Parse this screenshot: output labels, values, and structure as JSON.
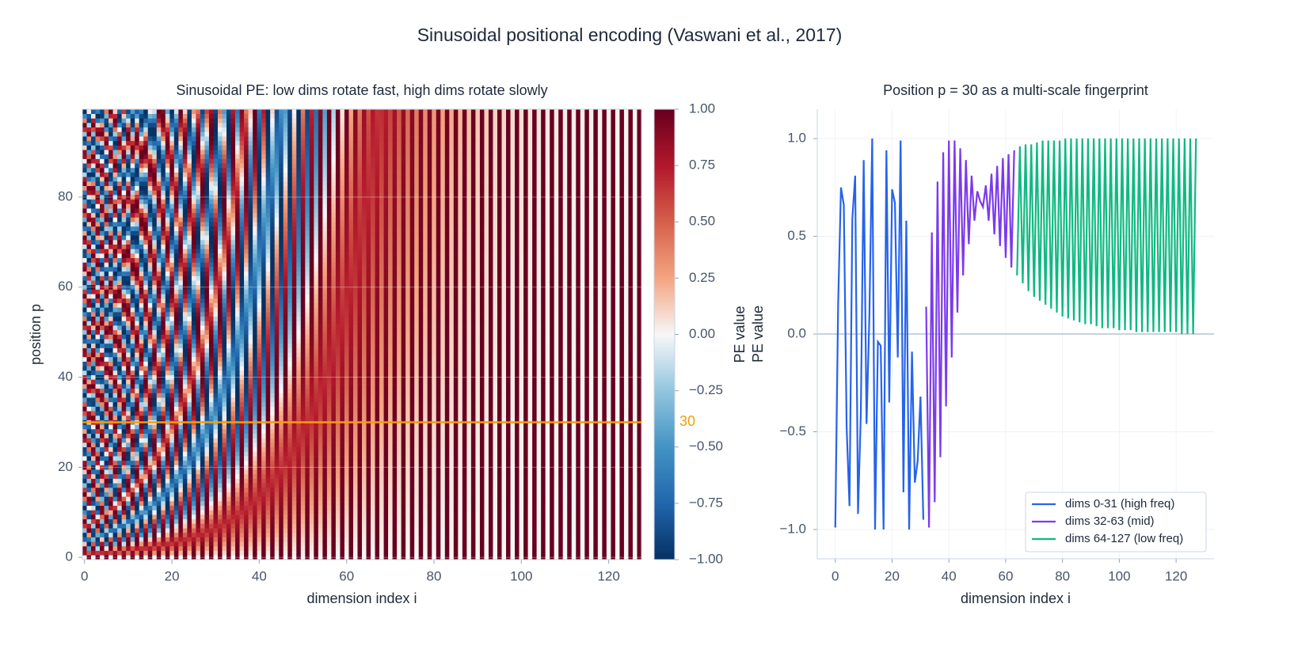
{
  "title": "Sinusoidal positional encoding (Vaswani et al., 2017)",
  "chart_data": [
    {
      "type": "heatmap",
      "title": "Sinusoidal PE: low dims rotate fast, high dims rotate slowly",
      "xlabel": "dimension index i",
      "ylabel": "position p",
      "xlim": [
        -0.5,
        127.5
      ],
      "ylim": [
        -0.5,
        99.5
      ],
      "xticks": [
        0,
        20,
        40,
        60,
        80,
        100,
        120
      ],
      "yticks": [
        0,
        20,
        40,
        60,
        80
      ],
      "colormap": [
        "#053061",
        "#2166ac",
        "#4393c3",
        "#92c5de",
        "#f7f7f7",
        "#f4a582",
        "#d6604d",
        "#b2182b",
        "#67001f"
      ],
      "highlight": 30,
      "highlight_color": "#f59e0b",
      "colorbar": {
        "label": "PE value",
        "lim": [
          -1,
          1
        ],
        "ticks": [
          {
            "value": 1,
            "label": "1.00"
          },
          {
            "value": 0.75,
            "label": "0.75"
          },
          {
            "value": 0.5,
            "label": "0.50"
          },
          {
            "value": 0.25,
            "label": "0.25"
          },
          {
            "value": 0,
            "label": "0.00"
          },
          {
            "value": -0.25,
            "label": "−0.25"
          },
          {
            "value": -0.5,
            "label": "−0.50"
          },
          {
            "value": -0.75,
            "label": "−0.75"
          },
          {
            "value": -1,
            "label": "−1.00"
          }
        ]
      }
    },
    {
      "type": "line",
      "title": "Position p = 30 as a multi-scale fingerprint",
      "xlabel": "dimension index i",
      "ylabel": "PE value",
      "xlim": [
        -6.35,
        133.35
      ],
      "ylim": [
        -1.15,
        1.15
      ],
      "xticks": [
        0,
        20,
        40,
        60,
        80,
        100,
        120
      ],
      "yticks": [
        {
          "value": -1,
          "label": "−1.0"
        },
        {
          "value": -0.5,
          "label": "−0.5"
        },
        {
          "value": 0,
          "label": "0.0"
        },
        {
          "value": 0.5,
          "label": "0.5"
        },
        {
          "value": 1,
          "label": "1.0"
        }
      ],
      "grid": true,
      "legend": "lower right",
      "series": [
        {
          "name": "dims 0-31 (high freq)",
          "color": "#2563eb",
          "x": [
            0,
            1,
            2,
            3,
            4,
            5,
            6,
            7,
            8,
            9,
            10,
            11,
            12,
            13,
            14,
            15,
            16,
            17,
            18,
            19,
            20,
            21,
            22,
            23,
            24,
            25,
            26,
            27,
            28,
            29,
            30,
            31
          ],
          "values": [
            -0.99,
            0.15,
            0.75,
            0.66,
            -0.48,
            -0.88,
            0.59,
            0.81,
            -0.92,
            -0.4,
            0.89,
            -0.46,
            0.09,
            1.0,
            -1.0,
            -0.04,
            -0.06,
            -1.0,
            0.94,
            -0.35,
            0.74,
            0.67,
            -0.12,
            0.99,
            -0.81,
            0.58,
            -1.0,
            -0.09,
            -0.76,
            -0.65,
            -0.32,
            -0.95
          ]
        },
        {
          "name": "dims 32-63 (mid)",
          "color": "#7c3aed",
          "x": [
            32,
            33,
            34,
            35,
            36,
            37,
            38,
            39,
            40,
            41,
            42,
            43,
            44,
            45,
            46,
            47,
            48,
            49,
            50,
            51,
            52,
            53,
            54,
            55,
            56,
            57,
            58,
            59,
            60,
            61,
            62,
            63
          ],
          "values": [
            0.14,
            -0.99,
            0.52,
            -0.86,
            0.78,
            -0.63,
            0.93,
            -0.37,
            0.99,
            -0.12,
            0.99,
            0.11,
            0.95,
            0.3,
            0.89,
            0.46,
            0.81,
            0.58,
            0.73,
            0.68,
            0.65,
            0.76,
            0.58,
            0.82,
            0.51,
            0.86,
            0.45,
            0.9,
            0.39,
            0.92,
            0.34,
            0.94
          ]
        },
        {
          "name": "dims 64-127 (low freq)",
          "color": "#10b981",
          "x": [
            64,
            65,
            66,
            67,
            68,
            69,
            70,
            71,
            72,
            73,
            74,
            75,
            76,
            77,
            78,
            79,
            80,
            81,
            82,
            83,
            84,
            85,
            86,
            87,
            88,
            89,
            90,
            91,
            92,
            93,
            94,
            95,
            96,
            97,
            98,
            99,
            100,
            101,
            102,
            103,
            104,
            105,
            106,
            107,
            108,
            109,
            110,
            111,
            112,
            113,
            114,
            115,
            116,
            117,
            118,
            119,
            120,
            121,
            122,
            123,
            124,
            125,
            126,
            127
          ],
          "values": [
            0.3,
            0.96,
            0.26,
            0.97,
            0.22,
            0.97,
            0.19,
            0.98,
            0.17,
            0.99,
            0.15,
            0.99,
            0.13,
            0.99,
            0.11,
            0.99,
            0.09,
            1.0,
            0.08,
            1.0,
            0.07,
            1.0,
            0.06,
            1.0,
            0.05,
            1.0,
            0.05,
            1.0,
            0.04,
            1.0,
            0.03,
            1.0,
            0.03,
            1.0,
            0.03,
            1.0,
            0.02,
            1.0,
            0.02,
            1.0,
            0.02,
            1.0,
            0.01,
            1.0,
            0.01,
            1.0,
            0.01,
            1.0,
            0.01,
            1.0,
            0.01,
            1.0,
            0.01,
            1.0,
            0.01,
            1.0,
            0.01,
            1.0,
            0.0,
            1.0,
            0.0,
            1.0,
            0.0,
            1.0
          ]
        }
      ]
    }
  ]
}
